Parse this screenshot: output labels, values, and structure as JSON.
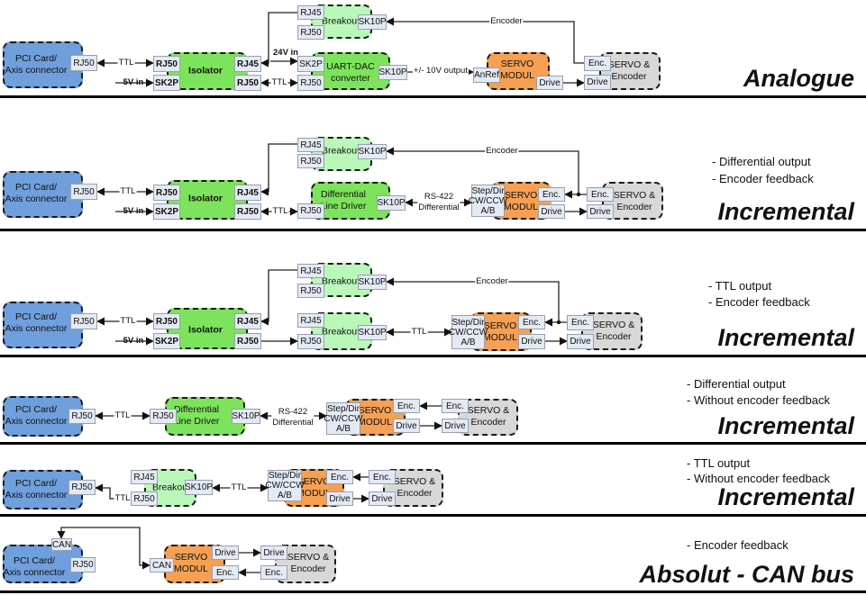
{
  "colors": {
    "pci": "#6f9fdc",
    "isolator": "#7de35c",
    "breakout": "#b9f8b9",
    "servo_modul": "#f5a052",
    "servo_encoder": "#d8d8d8",
    "port": "#e4eaf4"
  },
  "sections": [
    {
      "title": "Analogue",
      "notes": [],
      "blocks": [
        {
          "label": "PCI Card/\nAxis connector",
          "ports": [
            "RJ50"
          ]
        },
        {
          "label": "Isolator",
          "ports": [
            "RJ50",
            "SK2P",
            "RJ45",
            "RJ50"
          ]
        },
        {
          "label": "Breakout",
          "ports": [
            "RJ45",
            "RJ50",
            "SK10P"
          ]
        },
        {
          "label": "UART-DAC\nconverter",
          "ports": [
            "SK2P",
            "RJ50",
            "SK10P"
          ]
        },
        {
          "label": "SERVO\nMODUL",
          "ports": [
            "AnRef",
            "Drive"
          ]
        },
        {
          "label": "SERVO &\nEncoder",
          "ports": [
            "Enc.",
            "Drive"
          ]
        }
      ],
      "links": [
        "TTL",
        "5V in",
        "24V in",
        "TTL",
        "+/- 10V output",
        "Encoder"
      ]
    },
    {
      "title": "Incremental",
      "notes": [
        "- Differential output",
        "- Encoder feedback"
      ],
      "blocks": [
        {
          "label": "Breakout",
          "ports": [
            "RJ45",
            "RJ50",
            "SK10P"
          ]
        },
        {
          "label": "PCI Card/\nAxis connector",
          "ports": [
            "RJ50"
          ]
        },
        {
          "label": "Isolator",
          "ports": [
            "RJ50",
            "SK2P",
            "RJ45",
            "RJ50"
          ]
        },
        {
          "label": "Differential\nLine Driver",
          "ports": [
            "RJ50",
            "SK10P"
          ]
        },
        {
          "label": "SERVO\nMODUL",
          "ports": [
            "Step/Dir\nCW/CCW\nA/B",
            "Enc.",
            "Drive"
          ]
        },
        {
          "label": "SERVO &\nEncoder",
          "ports": [
            "Enc.",
            "Drive"
          ]
        }
      ],
      "links": [
        "TTL",
        "5V in",
        "TTL",
        "RS-422\nDifferential",
        "Encoder"
      ]
    },
    {
      "title": "Incremental",
      "notes": [
        "- TTL output",
        "- Encoder feedback"
      ],
      "blocks": [
        {
          "label": "Breakout",
          "ports": [
            "RJ45",
            "RJ50",
            "SK10P"
          ]
        },
        {
          "label": "PCI Card/\nAxis connector",
          "ports": [
            "RJ50"
          ]
        },
        {
          "label": "Isolator",
          "ports": [
            "RJ50",
            "SK2P",
            "RJ45",
            "RJ50"
          ]
        },
        {
          "label": "Breakout",
          "ports": [
            "RJ45",
            "RJ50",
            "SK10P"
          ]
        },
        {
          "label": "SERVO\nMODUL",
          "ports": [
            "Step/Dir\nCW/CCW\nA/B",
            "Enc.",
            "Drive"
          ]
        },
        {
          "label": "SERVO &\nEncoder",
          "ports": [
            "Enc.",
            "Drive"
          ]
        }
      ],
      "links": [
        "TTL",
        "5V in",
        "TTL",
        "Encoder"
      ]
    },
    {
      "title": "Incremental",
      "notes": [
        "- Differential output",
        "- Without encoder feedback"
      ],
      "blocks": [
        {
          "label": "PCI Card/\nAxis connector",
          "ports": [
            "RJ50"
          ]
        },
        {
          "label": "Differential\nLine Driver",
          "ports": [
            "RJ50",
            "SK10P"
          ]
        },
        {
          "label": "SERVO\nMODUL",
          "ports": [
            "Step/Dir\nCW/CCW\nA/B",
            "Enc.",
            "Drive"
          ]
        },
        {
          "label": "SERVO &\nEncoder",
          "ports": [
            "Enc.",
            "Drive"
          ]
        }
      ],
      "links": [
        "TTL",
        "RS-422\nDifferential"
      ]
    },
    {
      "title": "Incremental",
      "notes": [
        "- TTL output",
        "- Without encoder feedback"
      ],
      "blocks": [
        {
          "label": "PCI Card/\nAxis connector",
          "ports": [
            "RJ50"
          ]
        },
        {
          "label": "Breakout",
          "ports": [
            "RJ45",
            "RJ50",
            "SK10P"
          ]
        },
        {
          "label": "SERVO\nMODUL",
          "ports": [
            "Step/Dir\nCW/CCW\nA/B",
            "Enc.",
            "Drive"
          ]
        },
        {
          "label": "SERVO &\nEncoder",
          "ports": [
            "Enc.",
            "Drive"
          ]
        }
      ],
      "links": [
        "TTL",
        "TTL"
      ]
    },
    {
      "title": "Absolut - CAN bus",
      "notes": [
        "- Encoder feedback"
      ],
      "blocks": [
        {
          "label": "PCI Card/\nAxis connector",
          "ports": [
            "CAN",
            "RJ50"
          ]
        },
        {
          "label": "SERVO\nMODUL",
          "ports": [
            "CAN",
            "Drive",
            "Enc."
          ]
        },
        {
          "label": "SERVO &\nEncoder",
          "ports": [
            "Drive",
            "Enc."
          ]
        }
      ],
      "links": []
    }
  ]
}
